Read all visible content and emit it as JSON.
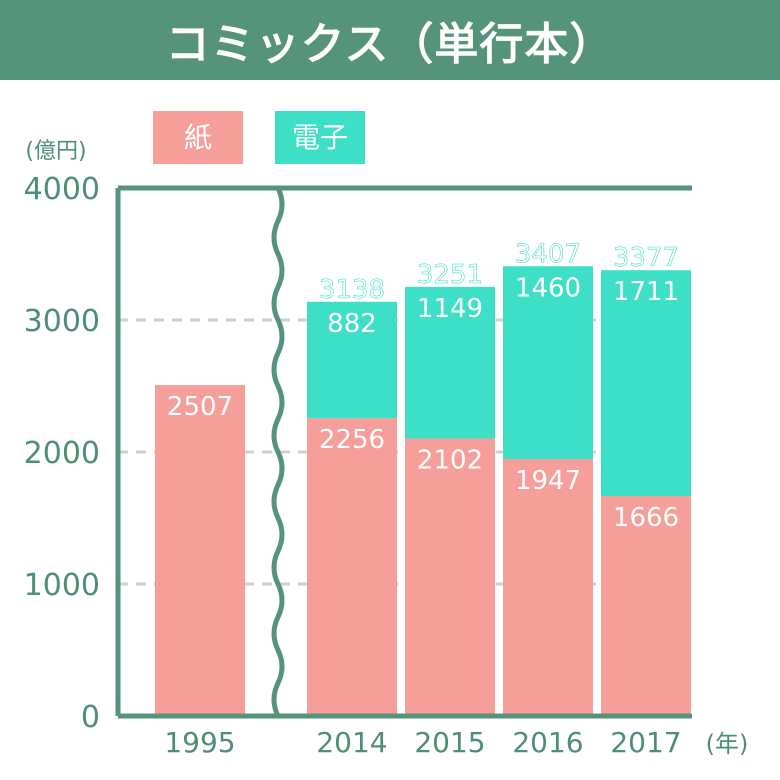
{
  "title": "コミックス（単行本）",
  "legend": [
    {
      "label": "紙",
      "color": "#f59e9a"
    },
    {
      "label": "電子",
      "color": "#3ddfc6"
    }
  ],
  "colors": {
    "axis": "#55937a",
    "title_bg": "#55937a",
    "grid": "#cfcfcf",
    "paper": "#f59e9a",
    "digital": "#3ddfc6"
  },
  "chart_data": {
    "type": "bar",
    "stacked": true,
    "y_unit_label": "(億円)",
    "x_unit_label": "(年)",
    "ylim": [
      0,
      4000
    ],
    "yticks": [
      0,
      1000,
      2000,
      3000,
      4000
    ],
    "grid": true,
    "axis_break_after_category": "1995",
    "categories": [
      "1995",
      "2014",
      "2015",
      "2016",
      "2017"
    ],
    "series": [
      {
        "name": "紙",
        "values": [
          2507,
          2256,
          2102,
          1947,
          1666
        ]
      },
      {
        "name": "電子",
        "values": [
          0,
          882,
          1149,
          1460,
          1711
        ]
      }
    ],
    "totals": [
      null,
      3138,
      3251,
      3407,
      3377
    ]
  }
}
